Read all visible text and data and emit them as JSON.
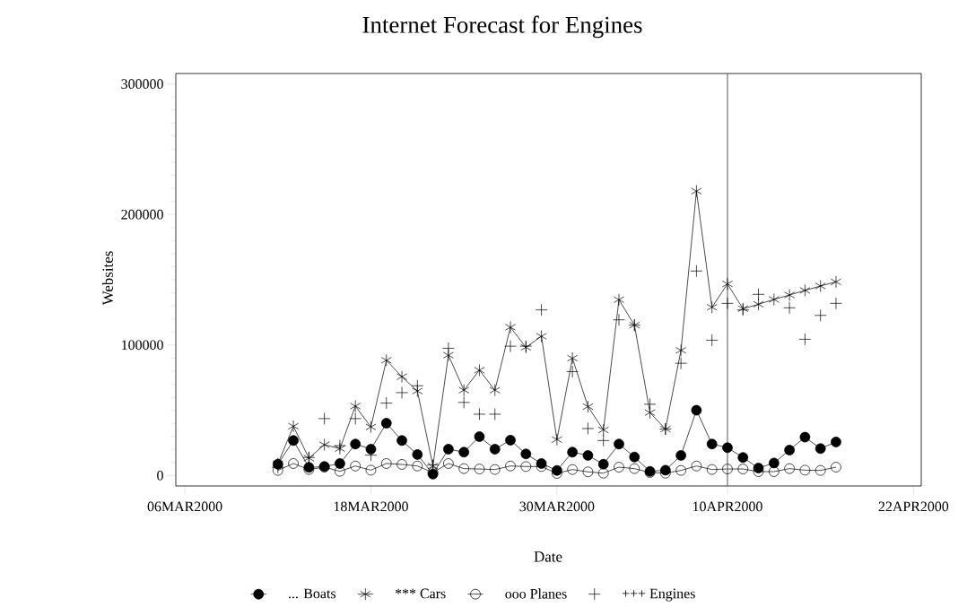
{
  "chart_data": {
    "type": "line",
    "title": "Internet Forecast for Engines",
    "xlabel": "Date",
    "ylabel": "Websites",
    "x": [
      "2000-03-12",
      "2000-03-13",
      "2000-03-14",
      "2000-03-15",
      "2000-03-16",
      "2000-03-17",
      "2000-03-18",
      "2000-03-19",
      "2000-03-20",
      "2000-03-21",
      "2000-03-22",
      "2000-03-23",
      "2000-03-24",
      "2000-03-25",
      "2000-03-26",
      "2000-03-27",
      "2000-03-28",
      "2000-03-29",
      "2000-03-30",
      "2000-03-31",
      "2000-04-01",
      "2000-04-02",
      "2000-04-03",
      "2000-04-04",
      "2000-04-05",
      "2000-04-06",
      "2000-04-07",
      "2000-04-08",
      "2000-04-09",
      "2000-04-10",
      "2000-04-11",
      "2000-04-12",
      "2000-04-13",
      "2000-04-14",
      "2000-04-15",
      "2000-04-16",
      "2000-04-17"
    ],
    "series": [
      {
        "name": "... Boats",
        "color": "#000000",
        "marker": "circle",
        "values": [
          8700,
          26800,
          6200,
          6900,
          9200,
          24100,
          20200,
          40100,
          26800,
          16100,
          1100,
          20200,
          17900,
          29800,
          20200,
          27100,
          16500,
          9200,
          3900,
          17900,
          15400,
          8700,
          24100,
          14200,
          3200,
          4100,
          15400,
          50000,
          24100,
          21300,
          13800,
          5700,
          9600,
          19500,
          29400,
          20600,
          25700
        ]
      },
      {
        "name": "*** Cars",
        "color": "#000000",
        "marker": "cross",
        "values": [
          9000,
          37800,
          13300,
          23600,
          20600,
          53200,
          37200,
          88300,
          75700,
          64700,
          7300,
          92200,
          65400,
          80700,
          65400,
          113600,
          98200,
          106700,
          27500,
          89900,
          52800,
          34900,
          134700,
          115200,
          48200,
          35600,
          95900,
          217900,
          128900,
          146800,
          127800,
          131200,
          134900,
          138300,
          141800,
          145200,
          148400
        ]
      },
      {
        "name": "ooo Planes",
        "color": "#000000",
        "marker": "circle",
        "values": [
          3900,
          9200,
          4600,
          6400,
          3200,
          7300,
          4100,
          9200,
          8500,
          7300,
          2300,
          9200,
          5300,
          5000,
          4600,
          7300,
          6900,
          6900,
          1600,
          4600,
          2800,
          1800,
          6400,
          5300,
          2300,
          1800,
          3900,
          7300,
          4600,
          5000,
          5000,
          3000,
          3000,
          5300,
          4100,
          3900,
          6400
        ]
      },
      {
        "name": "+++ Engines",
        "color": "#000000",
        "type": "scatter",
        "marker": "cross",
        "values": [
          6200,
          null,
          13800,
          43600,
          22900,
          43600,
          15600,
          55500,
          63500,
          68800,
          8000,
          97500,
          56000,
          47000,
          47000,
          99100,
          99100,
          126900,
          null,
          79600,
          36000,
          26800,
          119300,
          115200,
          54600,
          35600,
          86000,
          156700,
          103700,
          131900,
          126900,
          138800,
          null,
          128500,
          104400,
          122700,
          131900
        ]
      }
    ],
    "xlim": [
      "2000-03-05T10:00",
      "2000-04-22T12:00"
    ],
    "xticks": [
      {
        "value": "2000-03-06",
        "label": "06MAR2000"
      },
      {
        "value": "2000-03-18",
        "label": "18MAR2000"
      },
      {
        "value": "2000-03-30",
        "label": "30MAR2000"
      },
      {
        "value": "2000-04-10",
        "label": "10APR2000"
      },
      {
        "value": "2000-04-22",
        "label": "22APR2000"
      }
    ],
    "ylim": [
      -8000,
      308000
    ],
    "yticks": [
      0,
      100000,
      200000,
      300000
    ],
    "ref_lines": [
      {
        "axis": "x",
        "value": "2000-04-10",
        "color": "#555555"
      }
    ],
    "legend": "bottom",
    "line_style": "solid"
  }
}
